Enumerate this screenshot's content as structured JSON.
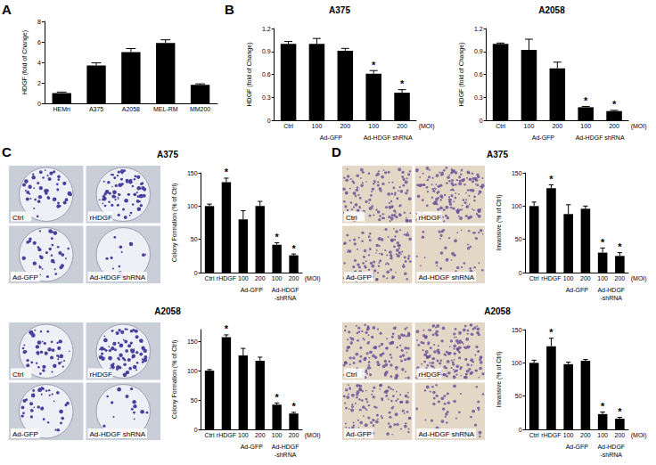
{
  "chart_data": [
    {
      "panel": "A",
      "type": "bar",
      "y_label": "HDGF (fold of Change)",
      "categories": [
        "HEMn",
        "A375",
        "A2058",
        "MEL-RM",
        "MM200"
      ],
      "values": [
        1.0,
        3.7,
        5.0,
        5.9,
        1.8
      ],
      "errors": [
        0.1,
        0.25,
        0.35,
        0.3,
        0.1
      ],
      "color": "#000000",
      "ylim": [
        0,
        8
      ],
      "yticks": [
        0,
        2,
        4,
        6,
        8
      ],
      "grid": false
    },
    {
      "panel": "B",
      "type": "bar",
      "title": "A375",
      "y_label": "HDGF (fold of Change)",
      "categories": [
        "Ctrl",
        "100",
        "200",
        "100",
        "200"
      ],
      "groups": [
        null,
        "Ad-GFP",
        "Ad-GFP",
        "Ad-HDGF shRNA",
        "Ad-HDGF shRNA"
      ],
      "x_unit": "(MOI)",
      "values": [
        1.0,
        1.0,
        0.91,
        0.61,
        0.36
      ],
      "errors": [
        0.03,
        0.07,
        0.03,
        0.04,
        0.04
      ],
      "significance": [
        null,
        null,
        null,
        "*",
        "*"
      ],
      "color": "#000000",
      "ylim": [
        0,
        1.2
      ],
      "yticks": [
        0,
        0.3,
        0.6,
        0.9,
        1.2
      ],
      "grid": false
    },
    {
      "panel": "B",
      "type": "bar",
      "title": "A2058",
      "y_label": "HDGF (fold of Change)",
      "categories": [
        "Ctrl",
        "100",
        "200",
        "100",
        "200"
      ],
      "groups": [
        null,
        "Ad-GFP",
        "Ad-GFP",
        "Ad-HDGF shRNA",
        "Ad-HDGF shRNA"
      ],
      "x_unit": "(MOI)",
      "values": [
        1.0,
        0.92,
        0.68,
        0.17,
        0.12
      ],
      "errors": [
        0.01,
        0.14,
        0.08,
        0.01,
        0.01
      ],
      "significance": [
        null,
        null,
        null,
        "*",
        "*"
      ],
      "color": "#000000",
      "ylim": [
        0,
        1.2
      ],
      "yticks": [
        0,
        0.3,
        0.6,
        0.9,
        1.2
      ],
      "grid": false
    },
    {
      "panel": "C",
      "type": "bar",
      "title": "A375",
      "y_label": "Colony Formation (% of Ctrl)",
      "image_labels": [
        "Ctrl",
        "rHDGF",
        "Ad-GFP",
        "Ad-HDGF shRNA"
      ],
      "categories": [
        "Ctrl",
        "rHDGF",
        "100",
        "200",
        "100",
        "200"
      ],
      "groups": [
        null,
        null,
        "Ad-GFP",
        "Ad-GFP",
        "Ad-HDGF -shRNA",
        "Ad-HDGF -shRNA"
      ],
      "x_unit": "(MOI)",
      "values": [
        100,
        136,
        80,
        100,
        42,
        26
      ],
      "errors": [
        3,
        6,
        13,
        7,
        3,
        2
      ],
      "significance": [
        null,
        "*",
        null,
        null,
        "*",
        "*"
      ],
      "color": "#000000",
      "ylim": [
        0,
        150
      ],
      "yticks": [
        0,
        50,
        100,
        150
      ],
      "grid": false
    },
    {
      "panel": "C",
      "type": "bar",
      "title": "A2058",
      "y_label": "Colony Formation (% of Ctrl)",
      "image_labels": [
        "Ctrl",
        "rHDGF",
        "Ad-GFP",
        "Ad-HDGF shRNA"
      ],
      "categories": [
        "Ctrl",
        "rHDGF",
        "100",
        "200",
        "100",
        "200"
      ],
      "groups": [
        null,
        null,
        "Ad-GFP",
        "Ad-GFP",
        "Ad-HDGF -shRNA",
        "Ad-HDGF -shRNA"
      ],
      "x_unit": "(MOI)",
      "values": [
        100,
        157,
        126,
        117,
        42,
        27
      ],
      "errors": [
        2,
        4,
        12,
        6,
        3,
        2
      ],
      "significance": [
        null,
        "*",
        null,
        null,
        "*",
        "*"
      ],
      "color": "#000000",
      "ylim": [
        0,
        170
      ],
      "yticks": [
        0,
        50,
        100,
        150
      ],
      "grid": false
    },
    {
      "panel": "D",
      "type": "bar",
      "title": "A375",
      "y_label": "Invansive (% of Ctrl)",
      "image_labels": [
        "Ctrl",
        "rHDGF",
        "Ad-GFP",
        "Ad-HDGF shRNA"
      ],
      "categories": [
        "Ctrl",
        "rHDGF",
        "100",
        "200",
        "100",
        "200"
      ],
      "groups": [
        null,
        null,
        "Ad-GFP",
        "Ad-GFP",
        "Ad-HDGF -shRNA",
        "Ad-HDGF -shRNA"
      ],
      "x_unit": "(MOI)",
      "values": [
        100,
        127,
        88,
        96,
        30,
        25
      ],
      "errors": [
        6,
        5,
        14,
        4,
        7,
        5
      ],
      "significance": [
        null,
        "*",
        null,
        null,
        "*",
        "*"
      ],
      "color": "#000000",
      "ylim": [
        0,
        150
      ],
      "yticks": [
        0,
        50,
        100,
        150
      ],
      "grid": false
    },
    {
      "panel": "D",
      "type": "bar",
      "title": "A2058",
      "y_label": "Invansive (% of Ctrl)",
      "image_labels": [
        "Ctrl",
        "rHDGF",
        "Ad-GFP",
        "Ad-HDGF shRNA"
      ],
      "categories": [
        "Ctrl",
        "rHDGF",
        "100",
        "200",
        "100",
        "200"
      ],
      "groups": [
        null,
        null,
        "Ad-GFP",
        "Ad-GFP",
        "Ad-HDGF -shRNA",
        "Ad-HDGF -shRNA"
      ],
      "x_unit": "(MOI)",
      "values": [
        100,
        125,
        98,
        103,
        23,
        16
      ],
      "errors": [
        4,
        12,
        3,
        2,
        3,
        2
      ],
      "significance": [
        null,
        "*",
        null,
        null,
        "*",
        "*"
      ],
      "color": "#000000",
      "ylim": [
        0,
        150
      ],
      "yticks": [
        0,
        50,
        100,
        150
      ],
      "grid": false
    }
  ]
}
